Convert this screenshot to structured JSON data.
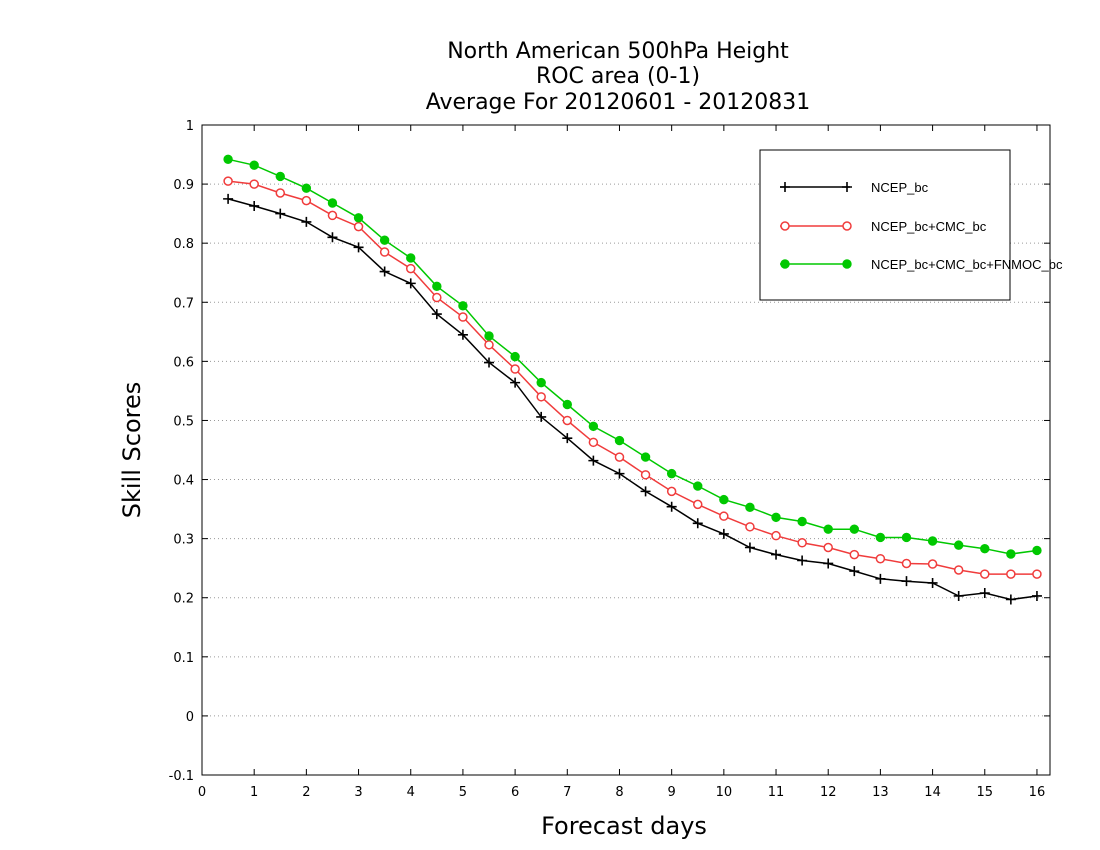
{
  "chart_data": {
    "type": "line",
    "title_lines": [
      "North American 500hPa Height",
      "ROC area (0-1)",
      "Average For 20120601 - 20120831"
    ],
    "xlabel": "Forecast days",
    "ylabel": "Skill Scores",
    "xlim": [
      0,
      16.25
    ],
    "ylim": [
      -0.1,
      1.0
    ],
    "x_ticks": [
      0,
      1,
      2,
      3,
      4,
      5,
      6,
      7,
      8,
      9,
      10,
      11,
      12,
      13,
      14,
      15,
      16
    ],
    "y_ticks": [
      -0.1,
      0,
      0.1,
      0.2,
      0.3,
      0.4,
      0.5,
      0.6,
      0.7,
      0.8,
      0.9,
      1
    ],
    "y_tick_labels": [
      "-0.1",
      "0",
      "0.1",
      "0.2",
      "0.3",
      "0.4",
      "0.5",
      "0.6",
      "0.7",
      "0.8",
      "0.9",
      "1"
    ],
    "grid": "horizontal dotted",
    "legend_position": "top-right",
    "x": [
      0.5,
      1.0,
      1.5,
      2.0,
      2.5,
      3.0,
      3.5,
      4.0,
      4.5,
      5.0,
      5.5,
      6.0,
      6.5,
      7.0,
      7.5,
      8.0,
      8.5,
      9.0,
      9.5,
      10.0,
      10.5,
      11.0,
      11.5,
      12.0,
      12.5,
      13.0,
      13.5,
      14.0,
      14.5,
      15.0,
      15.5,
      16.0
    ],
    "series": [
      {
        "name": "NCEP_bc",
        "color": "#000000",
        "marker": "plus",
        "values": [
          0.875,
          0.863,
          0.85,
          0.836,
          0.81,
          0.793,
          0.752,
          0.732,
          0.68,
          0.645,
          0.598,
          0.564,
          0.506,
          0.47,
          0.432,
          0.41,
          0.38,
          0.354,
          0.326,
          0.308,
          0.285,
          0.273,
          0.263,
          0.258,
          0.245,
          0.232,
          0.228,
          0.225,
          0.203,
          0.208,
          0.197,
          0.203
        ]
      },
      {
        "name": "NCEP_bc+CMC_bc",
        "color": "#f03c3c",
        "marker": "open-circle",
        "values": [
          0.905,
          0.9,
          0.885,
          0.872,
          0.847,
          0.828,
          0.785,
          0.757,
          0.708,
          0.675,
          0.628,
          0.587,
          0.54,
          0.5,
          0.463,
          0.438,
          0.408,
          0.38,
          0.358,
          0.338,
          0.32,
          0.305,
          0.293,
          0.285,
          0.273,
          0.266,
          0.258,
          0.257,
          0.247,
          0.24,
          0.24,
          0.24
        ]
      },
      {
        "name": "NCEP_bc+CMC_bc+FNMOC_bc",
        "color": "#00c800",
        "marker": "filled-circle",
        "values": [
          0.942,
          0.932,
          0.913,
          0.893,
          0.868,
          0.843,
          0.805,
          0.775,
          0.727,
          0.694,
          0.643,
          0.608,
          0.564,
          0.527,
          0.49,
          0.466,
          0.438,
          0.41,
          0.389,
          0.366,
          0.353,
          0.336,
          0.329,
          0.316,
          0.316,
          0.302,
          0.302,
          0.296,
          0.289,
          0.283,
          0.274,
          0.28
        ]
      }
    ]
  }
}
